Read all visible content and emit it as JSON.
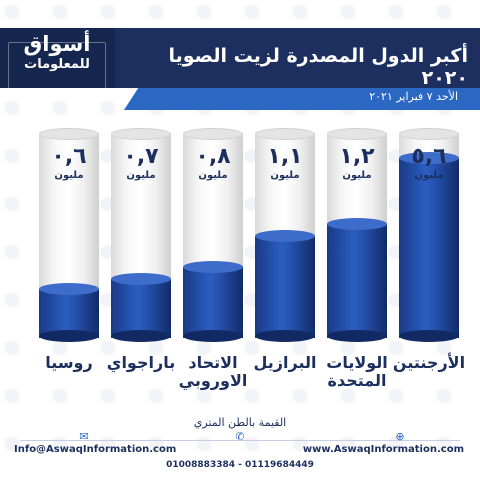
{
  "header": {
    "logo_line1": "أسواق",
    "logo_line2": "للمعلومات",
    "title": "أكبر الدول المصدرة لزيت الصويا ٢٠٢٠",
    "date": "الأحد ٧ فبراير ٢٠٢١"
  },
  "chart_data": {
    "type": "bar",
    "categories": [
      "الأرجنتين",
      "الولايات المتحدة",
      "البرازيل",
      "الاتحاد الاوروبي",
      "باراجواي",
      "روسيا"
    ],
    "value_labels": [
      "٥,٦",
      "١,٢",
      "١,١",
      "٠,٨",
      "٠,٧",
      "٠,٦"
    ],
    "values": [
      5.6,
      1.2,
      1.1,
      0.8,
      0.7,
      0.6
    ],
    "unit": "مليون",
    "fill_fractions": [
      0.88,
      0.56,
      0.5,
      0.35,
      0.29,
      0.24
    ],
    "colors": {
      "fill": "#2552ae",
      "glass": "#f2f2f2"
    }
  },
  "footer": {
    "note": "القيمة بالطن المتري",
    "email": "Info@AswaqInformation.com",
    "website": "www.AswaqInformation.com",
    "phones": "01008883384 - 01119684449"
  },
  "colors": {
    "primary": "#1c2f5e",
    "accent": "#2a68c4"
  }
}
